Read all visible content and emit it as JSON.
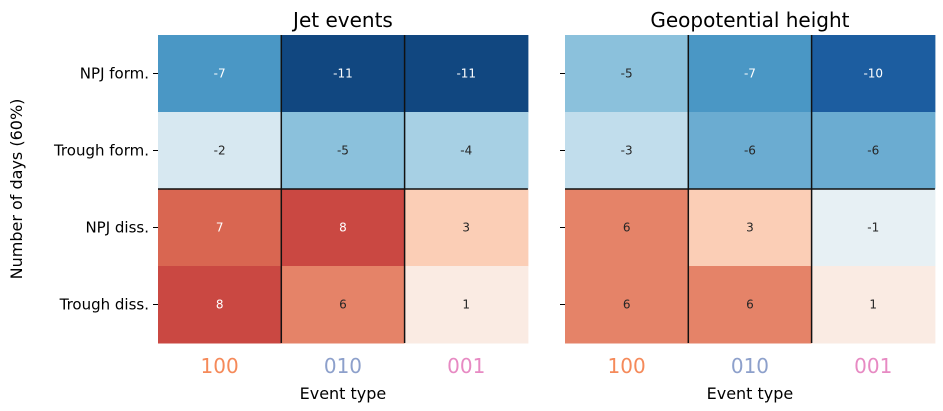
{
  "chart_data": [
    {
      "type": "heatmap",
      "title": "Jet events",
      "xlabel": "Event type",
      "ylabel": "Number of days (60%)",
      "columns": [
        "100",
        "010",
        "001"
      ],
      "rows": [
        "NPJ form.",
        "Trough form.",
        "NPJ diss.",
        "Trough diss."
      ],
      "values": [
        [
          -7,
          -11,
          -11
        ],
        [
          -2,
          -5,
          -4
        ],
        [
          7,
          8,
          3
        ],
        [
          8,
          6,
          1
        ]
      ],
      "show_row_labels": true
    },
    {
      "type": "heatmap",
      "title": "Geopotential height",
      "xlabel": "Event type",
      "ylabel": "",
      "columns": [
        "100",
        "010",
        "001"
      ],
      "rows": [
        "NPJ form.",
        "Trough form.",
        "NPJ diss.",
        "Trough diss."
      ],
      "values": [
        [
          -5,
          -7,
          -10
        ],
        [
          -3,
          -6,
          -6
        ],
        [
          6,
          3,
          -1
        ],
        [
          6,
          6,
          1
        ]
      ],
      "show_row_labels": false
    }
  ],
  "column_label_colors": [
    "#f58a5a",
    "#8da0cb",
    "#e78ac3"
  ],
  "color_scale": {
    "min": -12,
    "max": 12,
    "colormap": "RdBu_r"
  }
}
